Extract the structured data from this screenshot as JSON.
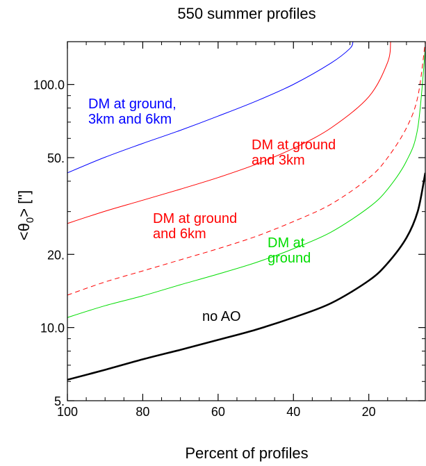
{
  "chart_data": {
    "type": "line",
    "title": "550 summer profiles",
    "xlabel": "Percent of profiles",
    "ylabel_parts": {
      "prefix": "<θ",
      "sub": "0",
      "suffix": "> [\"]"
    },
    "x_axis": {
      "reversed": true,
      "range": [
        100,
        5
      ],
      "ticks": [
        100,
        80,
        60,
        40,
        20
      ],
      "tick_labels": [
        "100",
        "80",
        "60",
        "40",
        "20"
      ]
    },
    "y_axis": {
      "scale": "log",
      "range": [
        5,
        150
      ],
      "ticks": [
        5,
        10,
        20,
        50,
        100
      ],
      "tick_labels": [
        "5.",
        "10.0",
        "20.",
        "50.",
        "100.0"
      ]
    },
    "grid": false,
    "series": [
      {
        "key": "blue",
        "color": "#0000ff",
        "dash": false,
        "width": 1,
        "label_lines": [
          "DM at ground,",
          "3km and 6km"
        ],
        "x": [
          100,
          90,
          80,
          70,
          60,
          50,
          40,
          30,
          25,
          24.2
        ],
        "y": [
          43.3,
          50.2,
          57.2,
          64.8,
          74.1,
          85.3,
          100.1,
          122.6,
          140.6,
          150
        ]
      },
      {
        "key": "red",
        "color": "#ff0000",
        "dash": false,
        "width": 1,
        "label_lines": [
          "DM at ground",
          "and 3km"
        ],
        "x": [
          100,
          90,
          80,
          70,
          60,
          50,
          40,
          30,
          20,
          15,
          14.2
        ],
        "y": [
          26.8,
          30.1,
          33.4,
          37.1,
          41.4,
          46.9,
          54.6,
          66.3,
          89.0,
          123.4,
          150
        ]
      },
      {
        "key": "red-dashed",
        "color": "#ff0000",
        "dash": true,
        "width": 1,
        "label_lines": [
          "DM at ground",
          "and 6km"
        ],
        "x": [
          100,
          90,
          80,
          70,
          60,
          50,
          40,
          30,
          20,
          15,
          10,
          7,
          5
        ],
        "y": [
          13.6,
          15.4,
          17.1,
          19.0,
          21.1,
          23.7,
          27.3,
          32.2,
          41.2,
          50.0,
          66.3,
          89.0,
          150
        ]
      },
      {
        "key": "green",
        "color": "#00dd00",
        "dash": false,
        "width": 1,
        "label_lines": [
          "DM at",
          "ground"
        ],
        "x": [
          100,
          90,
          80,
          70,
          60,
          50,
          40,
          30,
          20,
          15,
          10,
          7,
          5
        ],
        "y": [
          11.0,
          12.3,
          13.5,
          15.0,
          16.6,
          18.5,
          21.1,
          24.7,
          31.2,
          37.1,
          48.4,
          66.3,
          140.6
        ]
      },
      {
        "key": "black",
        "color": "#000000",
        "dash": false,
        "width": 2.6,
        "label_lines": [
          "no AO"
        ],
        "x": [
          100,
          90,
          80,
          70,
          60,
          50,
          40,
          30,
          20,
          15,
          10,
          7,
          5
        ],
        "y": [
          6.1,
          6.7,
          7.4,
          8.1,
          8.9,
          9.8,
          11.0,
          12.6,
          15.6,
          18.4,
          23.4,
          30.1,
          43.3
        ]
      }
    ]
  }
}
